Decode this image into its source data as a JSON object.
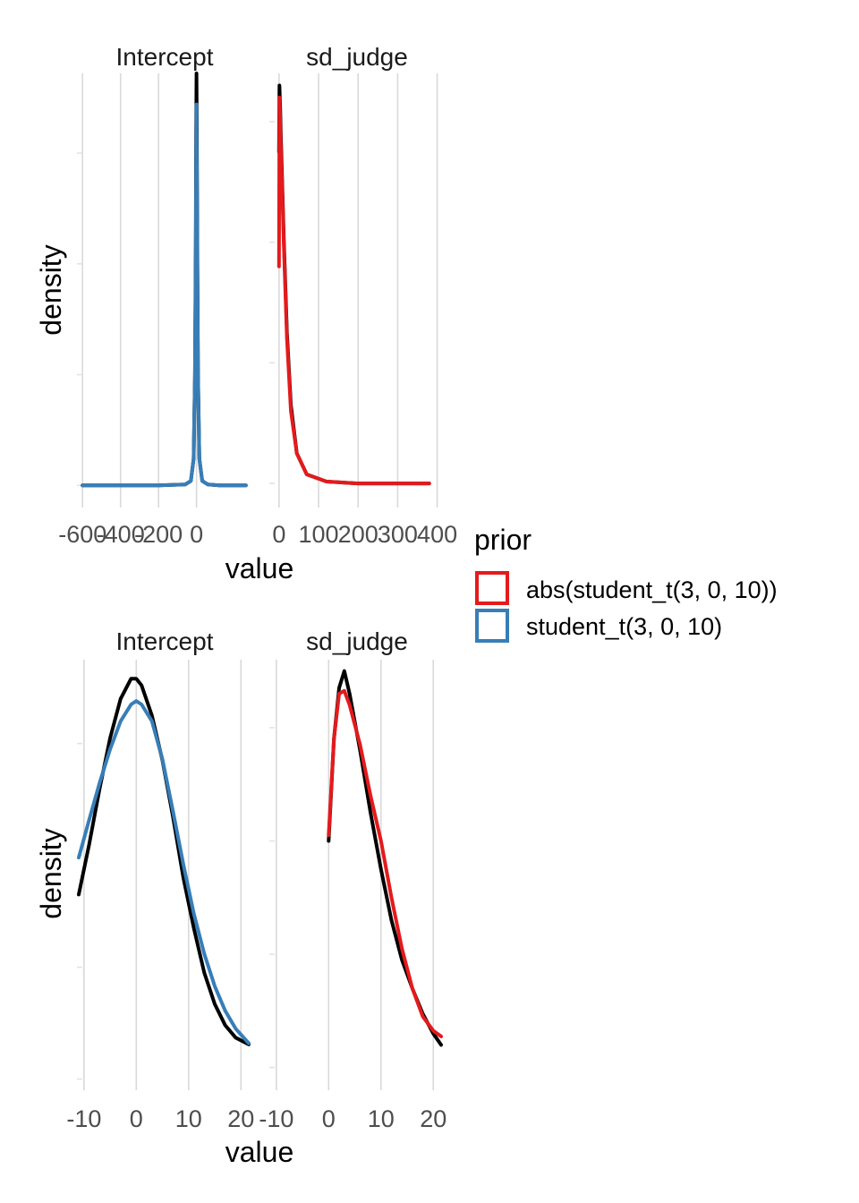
{
  "colors": {
    "empirical": "#000000",
    "abs_prior": "#E41A1C",
    "t_prior": "#377EB8"
  },
  "legend": {
    "title": "prior",
    "items": [
      {
        "label": "abs(student_t(3, 0, 10))",
        "color": "#E41A1C"
      },
      {
        "label": "student_t(3, 0, 10)",
        "color": "#377EB8"
      }
    ]
  },
  "chart_data": [
    {
      "type": "line",
      "xlabel": "value",
      "ylabel": "density",
      "panels": [
        {
          "strip": "Intercept",
          "xlim": [
            -620,
            275
          ],
          "xticks": [
            -600,
            -400,
            -200,
            0
          ],
          "xtick_labels": [
            "-600",
            "-400",
            "-200",
            "0"
          ],
          "yticks": [
            0,
            0.25,
            0.5,
            0.75
          ],
          "ylim": [
            -0.05,
            0.93
          ],
          "series": [
            {
              "color": "black",
              "x": [
                -600,
                -200,
                -60,
                -30,
                -15,
                -8,
                -4,
                -2,
                0,
                2,
                4,
                8,
                15,
                30,
                60,
                120,
                260
              ],
              "y": [
                0,
                0,
                0.002,
                0.01,
                0.06,
                0.25,
                0.55,
                0.8,
                0.93,
                0.8,
                0.55,
                0.25,
                0.06,
                0.01,
                0.002,
                0,
                0
              ]
            },
            {
              "color": "t_prior",
              "x": [
                -600,
                -200,
                -60,
                -30,
                -15,
                -8,
                -4,
                -2,
                0,
                2,
                4,
                8,
                15,
                30,
                60,
                120,
                260
              ],
              "y": [
                0,
                0,
                0.002,
                0.01,
                0.06,
                0.25,
                0.5,
                0.7,
                0.86,
                0.72,
                0.5,
                0.25,
                0.06,
                0.01,
                0.002,
                0,
                0
              ]
            }
          ]
        },
        {
          "strip": "sd_judge",
          "xlim": [
            -20,
            410
          ],
          "xticks": [
            0,
            100,
            200,
            300,
            400
          ],
          "xtick_labels": [
            "0",
            "100",
            "200",
            "300",
            "400"
          ],
          "yticks": [
            0,
            0.02,
            0.04,
            0.06
          ],
          "ylim": [
            -0.004,
            0.068
          ],
          "series": [
            {
              "color": "black",
              "x": [
                0,
                1,
                3,
                5,
                8,
                12,
                20,
                30,
                45,
                70,
                120,
                200,
                380
              ],
              "y": [
                0.055,
                0.066,
                0.062,
                0.057,
                0.05,
                0.041,
                0.025,
                0.013,
                0.005,
                0.0015,
                0.0003,
                0,
                0
              ]
            },
            {
              "color": "abs_prior",
              "x": [
                0,
                1,
                3,
                5,
                8,
                12,
                20,
                30,
                45,
                70,
                120,
                200,
                380
              ],
              "y": [
                0.036,
                0.064,
                0.06,
                0.055,
                0.049,
                0.04,
                0.024,
                0.012,
                0.005,
                0.0015,
                0.0003,
                0,
                0
              ]
            }
          ]
        }
      ]
    },
    {
      "type": "line",
      "xlabel": "value",
      "ylabel": "density",
      "panels": [
        {
          "strip": "Intercept",
          "xlim": [
            -11,
            21.5
          ],
          "xticks": [
            -10,
            0,
            10,
            20
          ],
          "xtick_labels": [
            "-10",
            "0",
            "10",
            "20"
          ],
          "yticks": [
            0,
            0.01,
            0.02,
            0.03
          ],
          "ylim": [
            -0.001,
            0.0375
          ],
          "series": [
            {
              "color": "black",
              "x": [
                -11,
                -9,
                -7,
                -5,
                -3,
                -1,
                0,
                1,
                3,
                5,
                7,
                9,
                11,
                13,
                15,
                17,
                19,
                21.5
              ],
              "y": [
                0.0165,
                0.021,
                0.026,
                0.0305,
                0.034,
                0.0358,
                0.0358,
                0.0352,
                0.0325,
                0.0285,
                0.0235,
                0.018,
                0.0135,
                0.0095,
                0.0067,
                0.0048,
                0.0037,
                0.0031
              ]
            },
            {
              "color": "t_prior",
              "x": [
                -11,
                -9,
                -7,
                -5,
                -3,
                -1,
                0,
                1,
                3,
                5,
                7,
                9,
                11,
                13,
                15,
                17,
                19,
                21.5
              ],
              "y": [
                0.0198,
                0.0232,
                0.0265,
                0.0295,
                0.032,
                0.0335,
                0.0338,
                0.0335,
                0.032,
                0.0286,
                0.024,
                0.0192,
                0.0148,
                0.0112,
                0.0083,
                0.0061,
                0.0045,
                0.0032
              ]
            }
          ]
        },
        {
          "strip": "sd_judge",
          "xlim": [
            -11,
            21.5
          ],
          "xticks": [
            -10,
            0,
            10,
            20
          ],
          "xtick_labels": [
            "-10",
            "0",
            "10",
            "20"
          ],
          "yticks": [
            0,
            0.02,
            0.04,
            0.06
          ],
          "ylim": [
            -0.004,
            0.072
          ],
          "series": [
            {
              "color": "black",
              "x": [
                0,
                1,
                2,
                3,
                4,
                6,
                8,
                10,
                12,
                14,
                16,
                18,
                20,
                21.5
              ],
              "y": [
                0.04,
                0.058,
                0.067,
                0.07,
                0.066,
                0.056,
                0.045,
                0.035,
                0.026,
                0.019,
                0.014,
                0.0095,
                0.006,
                0.004
              ]
            },
            {
              "color": "abs_prior",
              "x": [
                0,
                1,
                2,
                3,
                4,
                6,
                8,
                10,
                12,
                14,
                16,
                18,
                20,
                21.5
              ],
              "y": [
                0.041,
                0.058,
                0.066,
                0.0665,
                0.064,
                0.057,
                0.048,
                0.04,
                0.03,
                0.021,
                0.014,
                0.009,
                0.0065,
                0.0055
              ]
            }
          ]
        }
      ]
    }
  ]
}
